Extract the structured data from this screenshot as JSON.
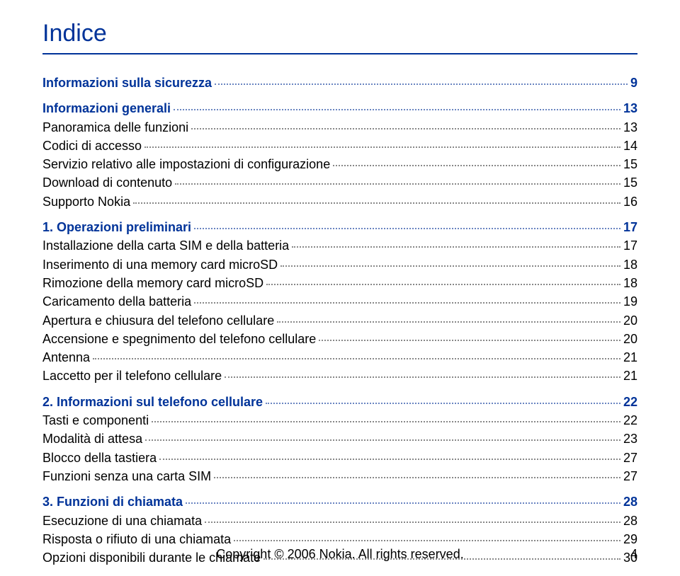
{
  "title": "Indice",
  "entries": [
    {
      "label": "Informazioni sulla sicurezza",
      "page": "9",
      "style": "blue-bold",
      "gap": false
    },
    {
      "label": "Informazioni generali",
      "page": "13",
      "style": "blue-bold",
      "gap": true
    },
    {
      "label": "Panoramica delle funzioni",
      "page": "13",
      "style": "black",
      "gap": false
    },
    {
      "label": "Codici di accesso",
      "page": "14",
      "style": "black",
      "gap": false
    },
    {
      "label": "Servizio relativo alle impostazioni di configurazione",
      "page": "15",
      "style": "black",
      "gap": false
    },
    {
      "label": "Download di contenuto",
      "page": "15",
      "style": "black",
      "gap": false
    },
    {
      "label": "Supporto Nokia",
      "page": "16",
      "style": "black",
      "gap": false
    },
    {
      "label": "1. Operazioni preliminari",
      "page": "17",
      "style": "blue-bold",
      "gap": true
    },
    {
      "label": "Installazione della carta SIM e della batteria",
      "page": "17",
      "style": "black",
      "gap": false
    },
    {
      "label": "Inserimento di una memory card microSD",
      "page": "18",
      "style": "black",
      "gap": false
    },
    {
      "label": "Rimozione della memory card microSD",
      "page": "18",
      "style": "black",
      "gap": false
    },
    {
      "label": "Caricamento della batteria",
      "page": "19",
      "style": "black",
      "gap": false
    },
    {
      "label": "Apertura e chiusura del telefono cellulare",
      "page": "20",
      "style": "black",
      "gap": false
    },
    {
      "label": "Accensione e spegnimento del telefono cellulare",
      "page": "20",
      "style": "black",
      "gap": false
    },
    {
      "label": "Antenna",
      "page": "21",
      "style": "black",
      "gap": false
    },
    {
      "label": "Laccetto per il telefono cellulare",
      "page": "21",
      "style": "black",
      "gap": false
    },
    {
      "label": "2. Informazioni sul telefono cellulare",
      "page": "22",
      "style": "blue-bold",
      "gap": true
    },
    {
      "label": "Tasti e componenti",
      "page": "22",
      "style": "black",
      "gap": false
    },
    {
      "label": "Modalità di attesa",
      "page": "23",
      "style": "black",
      "gap": false
    },
    {
      "label": "Blocco della tastiera",
      "page": "27",
      "style": "black",
      "gap": false
    },
    {
      "label": "Funzioni senza una carta SIM",
      "page": "27",
      "style": "black",
      "gap": false
    },
    {
      "label": "3. Funzioni di chiamata",
      "page": "28",
      "style": "blue-bold",
      "gap": true
    },
    {
      "label": "Esecuzione di una chiamata",
      "page": "28",
      "style": "black",
      "gap": false
    },
    {
      "label": "Risposta o rifiuto di una chiamata",
      "page": "29",
      "style": "black",
      "gap": false
    },
    {
      "label": "Opzioni disponibili durante le chiamate",
      "page": "30",
      "style": "black",
      "gap": false
    }
  ],
  "footer": {
    "copyright": "Copyright © 2006 Nokia. All rights reserved.",
    "page_number": "4"
  },
  "colors": {
    "heading_blue": "#003399",
    "text_black": "#000000",
    "dot_blue": "#6a85c1",
    "dot_gray": "#888888",
    "background": "#ffffff"
  },
  "typography": {
    "title_fontsize": 34,
    "entry_fontsize": 18,
    "footer_fontsize": 18,
    "font_family": "Arial, Helvetica, sans-serif"
  }
}
